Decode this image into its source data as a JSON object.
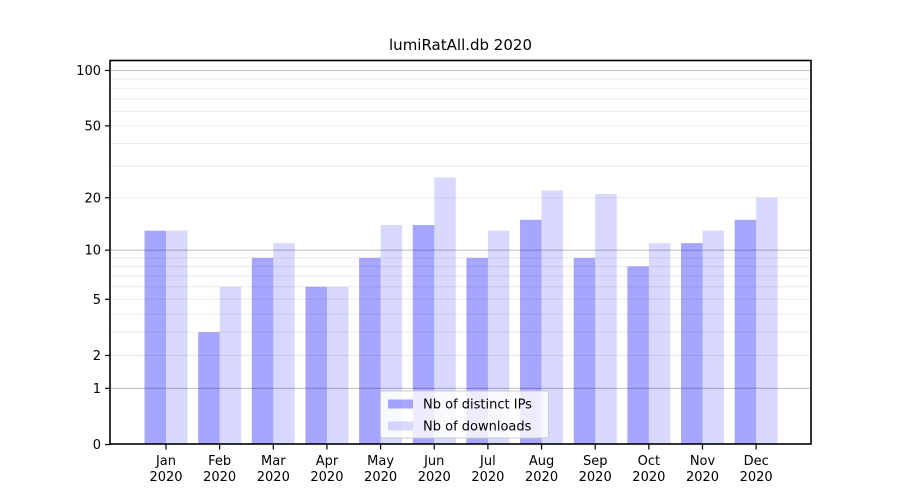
{
  "title": "lumiRatAll.db 2020",
  "chart_data": {
    "type": "bar",
    "title": "lumiRatAll.db 2020",
    "categories": [
      "Jan",
      "Feb",
      "Mar",
      "Apr",
      "May",
      "Jun",
      "Jul",
      "Aug",
      "Sep",
      "Oct",
      "Nov",
      "Dec"
    ],
    "x_tick_year": "2020",
    "series": [
      {
        "name": "Nb of distinct IPs",
        "color": "rgba(0,0,255,0.35)",
        "color_on_white": "#a6a6ff",
        "values": [
          13,
          3,
          9,
          6,
          9,
          14,
          9,
          15,
          9,
          8,
          11,
          15
        ]
      },
      {
        "name": "Nb of downloads",
        "color": "rgba(0,0,255,0.15)",
        "color_on_white": "#d9d9ff",
        "values": [
          13,
          6,
          11,
          6,
          14,
          26,
          13,
          22,
          21,
          11,
          13,
          20
        ]
      }
    ],
    "xlabel": "",
    "ylabel": "",
    "yscale": "log1p",
    "ylim": [
      0,
      113
    ],
    "y_ticks": [
      100,
      50,
      20,
      10,
      5,
      2,
      1,
      0
    ],
    "grid": "on",
    "grid_major_values": [
      1,
      10,
      100
    ],
    "grid_minor_values": [
      2,
      3,
      4,
      5,
      6,
      7,
      8,
      9,
      20,
      30,
      40,
      50,
      60,
      70,
      80,
      90
    ],
    "legend_position": "lower center"
  }
}
